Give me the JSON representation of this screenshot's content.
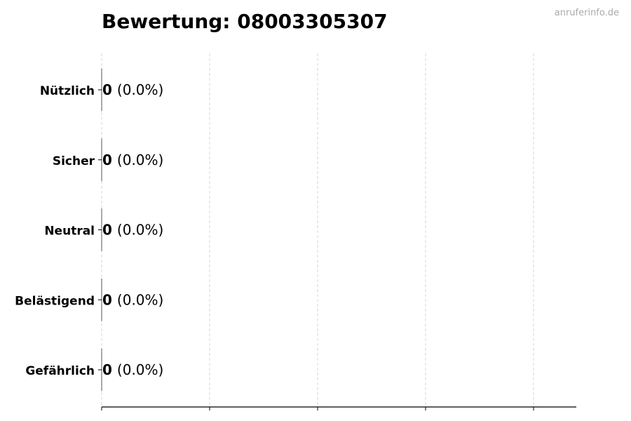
{
  "watermark": "anruferinfo.de",
  "chart_data": {
    "type": "bar",
    "orientation": "horizontal",
    "title": "Bewertung: 08003305307",
    "categories": [
      "Nützlich",
      "Sicher",
      "Neutral",
      "Belästigend",
      "Gefährlich"
    ],
    "values": [
      0,
      0,
      0,
      0,
      0
    ],
    "percent_labels": [
      "(0.0%)",
      "(0.0%)",
      "(0.0%)",
      "(0.0%)",
      "(0.0%)"
    ],
    "xlabel": "",
    "ylabel": "",
    "grid": "vertical dashed",
    "x_tick_count": 5,
    "x_tick_labels_shown": false
  }
}
